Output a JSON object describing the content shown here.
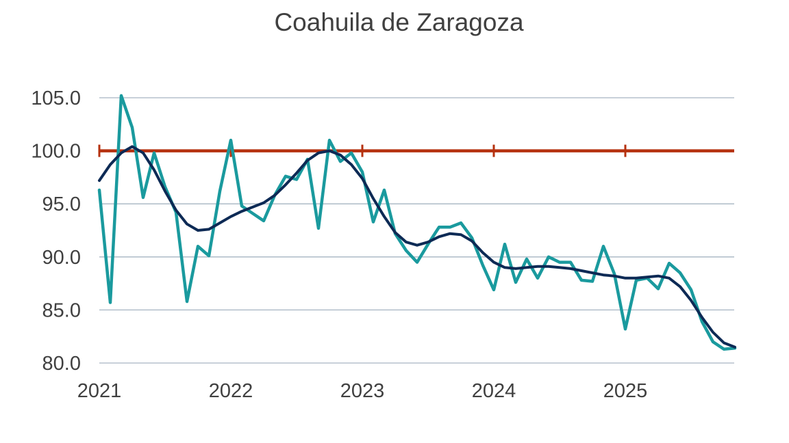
{
  "chart_data": {
    "type": "line",
    "title": "Coahuila de Zaragoza",
    "xlabel": "",
    "ylabel": "",
    "x_tick_labels": [
      "2021",
      "2022",
      "2023",
      "2024",
      "2025"
    ],
    "y_tick_labels": [
      "105.0",
      "100.0",
      "95.0",
      "90.0",
      "85.0",
      "80.0"
    ],
    "y_ticks": [
      105,
      100,
      95,
      90,
      85,
      80
    ],
    "ylim": [
      80,
      105
    ],
    "x_start": "2021-01",
    "grid": "horizontal",
    "legend": "none",
    "colors": {
      "series": "#1a9a9e",
      "trend": "#0d2a55",
      "reference": "#b5310f",
      "grid": "#a6b4c2",
      "text": "#404040"
    },
    "reference_line": {
      "value": 100
    },
    "series": [
      {
        "values": [
          96.3,
          85.7,
          105.2,
          102.2,
          95.6,
          99.8,
          96.6,
          94.2,
          85.8,
          91.0,
          90.1,
          96.2,
          101.0,
          94.8,
          94.1,
          93.4,
          95.8,
          97.6,
          97.3,
          99.2,
          92.7,
          101.0,
          99.0,
          99.8,
          98.0,
          93.3,
          96.3,
          92.2,
          90.6,
          89.5,
          91.2,
          92.8,
          92.8,
          93.2,
          91.8,
          89.2,
          86.9,
          91.2,
          87.6,
          89.8,
          88.0,
          90.0,
          89.5,
          89.5,
          87.8,
          87.7,
          91.0,
          88.4,
          83.2,
          87.8,
          88.0,
          87.0,
          89.4,
          88.5,
          86.9,
          83.9,
          82.0,
          81.3,
          81.4
        ]
      },
      {
        "values": [
          97.2,
          98.7,
          99.8,
          100.4,
          99.8,
          98.2,
          96.2,
          94.4,
          93.1,
          92.5,
          92.6,
          93.2,
          93.8,
          94.3,
          94.7,
          95.1,
          95.8,
          96.8,
          97.9,
          99.1,
          99.8,
          100.0,
          99.6,
          98.7,
          97.4,
          95.5,
          93.8,
          92.3,
          91.4,
          91.1,
          91.4,
          91.9,
          92.2,
          92.1,
          91.5,
          90.4,
          89.5,
          89.0,
          88.9,
          89.0,
          89.1,
          89.1,
          89.0,
          88.9,
          88.7,
          88.5,
          88.3,
          88.2,
          88.0,
          88.0,
          88.1,
          88.2,
          88.0,
          87.2,
          85.9,
          84.3,
          82.9,
          81.9,
          81.5
        ]
      }
    ]
  }
}
